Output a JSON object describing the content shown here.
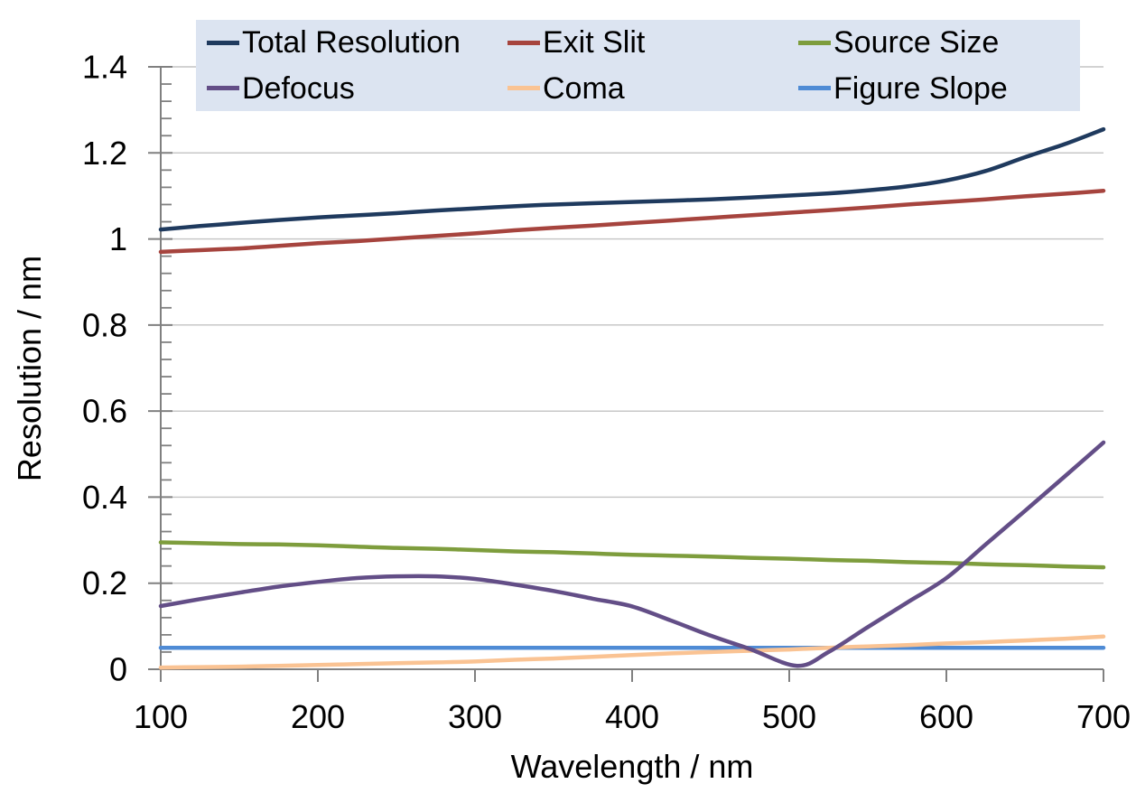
{
  "chart_data": {
    "type": "line",
    "title": "",
    "xlabel": "Wavelength / nm",
    "ylabel": "Resolution / nm",
    "xlim": [
      100,
      700
    ],
    "ylim": [
      0,
      1.4
    ],
    "x_ticks": [
      100,
      200,
      300,
      400,
      500,
      600,
      700
    ],
    "y_ticks": [
      "0",
      "0.2",
      "0.4",
      "0.6",
      "0.8",
      "1",
      "1.2",
      "1.4"
    ],
    "y_tick_values": [
      0,
      0.2,
      0.4,
      0.6,
      0.8,
      1,
      1.2,
      1.4
    ],
    "y_minor_tick_step": 0.04,
    "grid": "horizontal-major-only",
    "legend_position": "top",
    "colors": {
      "legend_bg": "#DCE4F1",
      "gridline": "#C3C3C3",
      "axis": "#808080",
      "text": "#000000"
    },
    "series": [
      {
        "name": "Total Resolution",
        "color": "#1F3A5E",
        "x": [
          100,
          125,
          150,
          175,
          200,
          225,
          250,
          275,
          300,
          325,
          350,
          375,
          400,
          425,
          450,
          475,
          500,
          525,
          550,
          575,
          600,
          625,
          650,
          675,
          700
        ],
        "y": [
          1.022,
          1.03,
          1.037,
          1.044,
          1.05,
          1.055,
          1.06,
          1.066,
          1.071,
          1.076,
          1.08,
          1.083,
          1.086,
          1.089,
          1.092,
          1.096,
          1.101,
          1.106,
          1.113,
          1.122,
          1.136,
          1.158,
          1.19,
          1.22,
          1.255
        ]
      },
      {
        "name": "Exit Slit",
        "color": "#A6443E",
        "x": [
          100,
          125,
          150,
          175,
          200,
          225,
          250,
          275,
          300,
          325,
          350,
          375,
          400,
          425,
          450,
          475,
          500,
          525,
          550,
          575,
          600,
          625,
          650,
          675,
          700
        ],
        "y": [
          0.97,
          0.974,
          0.978,
          0.984,
          0.99,
          0.995,
          1.001,
          1.007,
          1.013,
          1.02,
          1.026,
          1.031,
          1.037,
          1.043,
          1.049,
          1.055,
          1.061,
          1.067,
          1.073,
          1.08,
          1.086,
          1.092,
          1.099,
          1.105,
          1.112
        ]
      },
      {
        "name": "Source Size",
        "color": "#7E9D3D",
        "x": [
          100,
          125,
          150,
          175,
          200,
          225,
          250,
          275,
          300,
          325,
          350,
          375,
          400,
          425,
          450,
          475,
          500,
          525,
          550,
          575,
          600,
          625,
          650,
          675,
          700
        ],
        "y": [
          0.295,
          0.293,
          0.291,
          0.29,
          0.288,
          0.285,
          0.282,
          0.28,
          0.277,
          0.274,
          0.272,
          0.269,
          0.266,
          0.264,
          0.262,
          0.259,
          0.257,
          0.254,
          0.252,
          0.249,
          0.247,
          0.244,
          0.242,
          0.239,
          0.237
        ]
      },
      {
        "name": "Defocus",
        "color": "#634E87",
        "x": [
          100,
          125,
          150,
          175,
          200,
          225,
          250,
          275,
          300,
          325,
          350,
          375,
          400,
          425,
          450,
          475,
          505,
          525,
          550,
          575,
          600,
          625,
          650,
          675,
          700
        ],
        "y": [
          0.147,
          0.163,
          0.178,
          0.192,
          0.203,
          0.212,
          0.216,
          0.216,
          0.21,
          0.197,
          0.182,
          0.164,
          0.146,
          0.113,
          0.078,
          0.047,
          0.008,
          0.04,
          0.098,
          0.155,
          0.212,
          0.29,
          0.368,
          0.447,
          0.527
        ]
      },
      {
        "name": "Coma",
        "color": "#FAC393",
        "x": [
          100,
          125,
          150,
          175,
          200,
          225,
          250,
          275,
          300,
          325,
          350,
          375,
          400,
          425,
          450,
          475,
          500,
          525,
          550,
          575,
          600,
          625,
          650,
          675,
          700
        ],
        "y": [
          0.004,
          0.005,
          0.006,
          0.008,
          0.01,
          0.012,
          0.014,
          0.016,
          0.018,
          0.022,
          0.025,
          0.029,
          0.033,
          0.037,
          0.04,
          0.043,
          0.046,
          0.05,
          0.053,
          0.056,
          0.06,
          0.063,
          0.067,
          0.071,
          0.076
        ]
      },
      {
        "name": "Figure Slope",
        "color": "#4F8BD5",
        "x": [
          100,
          125,
          150,
          175,
          200,
          225,
          250,
          275,
          300,
          325,
          350,
          375,
          400,
          425,
          450,
          475,
          500,
          525,
          550,
          575,
          600,
          625,
          650,
          675,
          700
        ],
        "y": [
          0.05,
          0.05,
          0.05,
          0.05,
          0.05,
          0.05,
          0.05,
          0.05,
          0.05,
          0.05,
          0.05,
          0.05,
          0.05,
          0.05,
          0.05,
          0.05,
          0.05,
          0.05,
          0.05,
          0.05,
          0.05,
          0.05,
          0.05,
          0.05,
          0.05
        ]
      }
    ]
  }
}
